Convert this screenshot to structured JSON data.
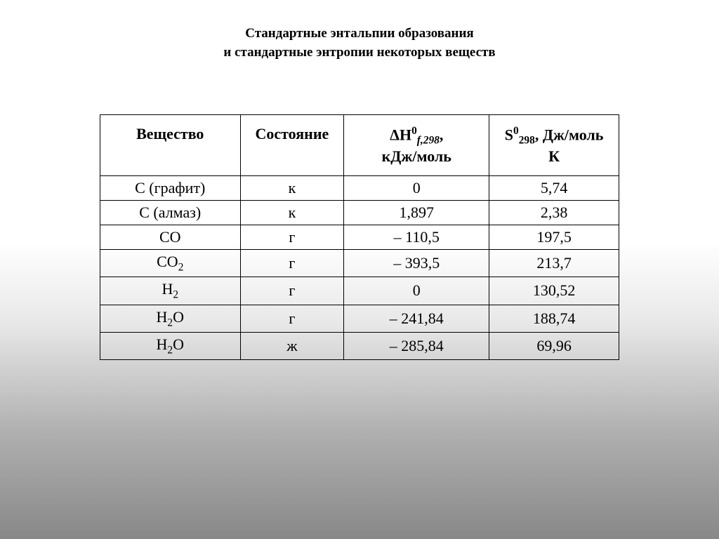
{
  "title_line1": "Стандартные энтальпии образования",
  "title_line2": "и стандартные энтропии некоторых веществ",
  "table": {
    "columns": [
      {
        "key": "substance",
        "label": "Вещество"
      },
      {
        "key": "state",
        "label": "Состояние"
      },
      {
        "key": "enthalpy",
        "label_prefix": "ΔH",
        "label_sup": "0",
        "label_sub": "f,298",
        "label_suffix": ",",
        "label_line2": "кДж/моль"
      },
      {
        "key": "entropy",
        "label_prefix": "S",
        "label_sup": "0",
        "label_sub": "298",
        "label_suffix": ", Дж/моль",
        "label_line2": "К"
      }
    ],
    "rows": [
      {
        "substance_base": "С (графит)",
        "substance_sub": "",
        "state": "к",
        "enthalpy": "0",
        "entropy": "5,74"
      },
      {
        "substance_base": "С (алмаз)",
        "substance_sub": "",
        "state": "к",
        "enthalpy": "1,897",
        "entropy": "2,38"
      },
      {
        "substance_base": "СО",
        "substance_sub": "",
        "state": "г",
        "enthalpy": "– 110,5",
        "entropy": "197,5"
      },
      {
        "substance_base": "СО",
        "substance_sub": "2",
        "state": "г",
        "enthalpy": "– 393,5",
        "entropy": "213,7"
      },
      {
        "substance_base": "H",
        "substance_sub": "2",
        "state": "г",
        "enthalpy": "0",
        "entropy": "130,52"
      },
      {
        "substance_base": "H",
        "substance_sub": "2",
        "substance_tail": "O",
        "state": "г",
        "enthalpy": "– 241,84",
        "entropy": "188,74"
      },
      {
        "substance_base": "H",
        "substance_sub": "2",
        "substance_tail": "O",
        "state": "ж",
        "enthalpy": "– 285,84",
        "entropy": "69,96"
      }
    ]
  },
  "style": {
    "background_gradient": [
      "#ffffff",
      "#ffffff",
      "#e8e8e8",
      "#b0b0b0",
      "#888888"
    ],
    "title_fontsize": 19,
    "header_fontsize": 22,
    "cell_fontsize": 22,
    "border_color": "#000000",
    "col_widths_pct": [
      27,
      20,
      28,
      25
    ]
  }
}
